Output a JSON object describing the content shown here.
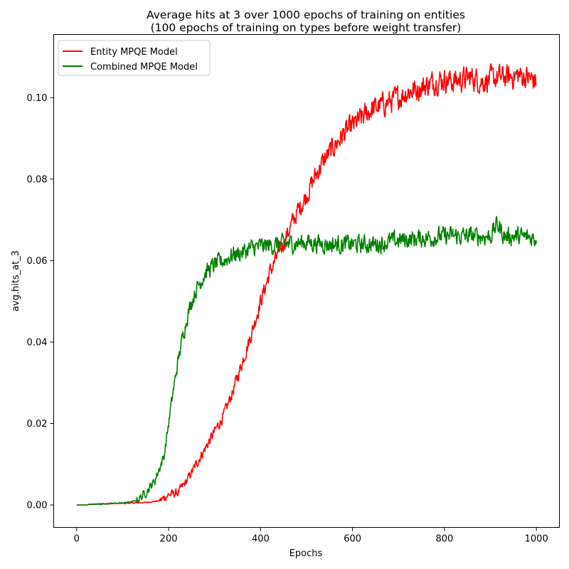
{
  "chart_data": {
    "type": "line",
    "title": "Average hits at 3 over 1000 epochs of training on entities",
    "subtitle": "(100 epochs of training on types before weight transfer)",
    "xlabel": "Epochs",
    "ylabel": "avg.hits_at_3",
    "xlim": [
      -50,
      1050
    ],
    "ylim": [
      -0.0055,
      0.1155
    ],
    "xticks": [
      0,
      200,
      400,
      600,
      800,
      1000
    ],
    "xtick_labels": [
      "0",
      "200",
      "400",
      "600",
      "800",
      "1000"
    ],
    "yticks": [
      0.0,
      0.02,
      0.04,
      0.06,
      0.08,
      0.1
    ],
    "ytick_labels": [
      "0.00",
      "0.02",
      "0.04",
      "0.06",
      "0.08",
      "0.10"
    ],
    "legend_position": "upper-left",
    "grid": false,
    "series": [
      {
        "name": "Entity MPQE Model",
        "color": "#ff0000",
        "x": [
          0,
          50,
          100,
          150,
          180,
          200,
          220,
          240,
          260,
          280,
          300,
          320,
          340,
          360,
          380,
          400,
          420,
          440,
          460,
          480,
          500,
          520,
          540,
          560,
          580,
          600,
          620,
          640,
          660,
          680,
          700,
          720,
          740,
          760,
          780,
          800,
          820,
          840,
          860,
          880,
          900,
          920,
          940,
          960,
          980,
          1000
        ],
        "values": [
          0.0,
          0.0003,
          0.0004,
          0.0006,
          0.001,
          0.0025,
          0.003,
          0.006,
          0.01,
          0.014,
          0.018,
          0.022,
          0.028,
          0.035,
          0.042,
          0.05,
          0.057,
          0.062,
          0.067,
          0.072,
          0.076,
          0.081,
          0.085,
          0.088,
          0.091,
          0.093,
          0.095,
          0.097,
          0.098,
          0.099,
          0.1,
          0.1015,
          0.102,
          0.103,
          0.104,
          0.1045,
          0.104,
          0.1045,
          0.105,
          0.104,
          0.1045,
          0.105,
          0.105,
          0.1055,
          0.105,
          0.104
        ]
      },
      {
        "name": "Combined MPQE Model",
        "color": "#008000",
        "x": [
          0,
          50,
          100,
          130,
          150,
          170,
          190,
          200,
          210,
          220,
          230,
          240,
          250,
          260,
          280,
          300,
          320,
          340,
          360,
          380,
          400,
          450,
          500,
          550,
          600,
          650,
          700,
          750,
          800,
          850,
          900,
          915,
          930,
          950,
          1000
        ],
        "values": [
          0.0,
          0.0002,
          0.0005,
          0.001,
          0.003,
          0.006,
          0.012,
          0.02,
          0.028,
          0.035,
          0.041,
          0.046,
          0.05,
          0.053,
          0.057,
          0.059,
          0.06,
          0.0615,
          0.062,
          0.063,
          0.0635,
          0.064,
          0.0645,
          0.064,
          0.064,
          0.064,
          0.065,
          0.0655,
          0.066,
          0.066,
          0.066,
          0.069,
          0.066,
          0.066,
          0.0655
        ]
      }
    ]
  }
}
